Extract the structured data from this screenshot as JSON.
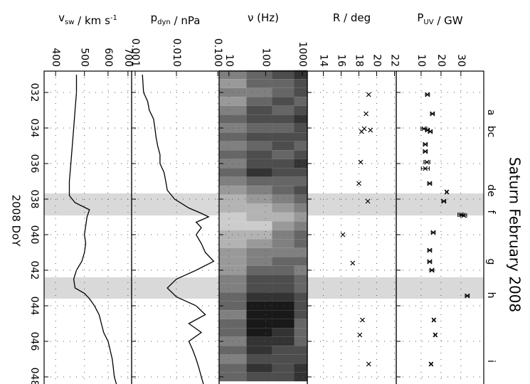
{
  "figure": {
    "title": "Saturn February 2008",
    "xlabel": "2008 DoY",
    "xlim": [
      30.8,
      48.4
    ],
    "xticks": [
      {
        "value": 32,
        "label": "032"
      },
      {
        "value": 34,
        "label": "034"
      },
      {
        "value": 36,
        "label": "036"
      },
      {
        "value": 38,
        "label": "038"
      },
      {
        "value": 40,
        "label": "040"
      },
      {
        "value": 42,
        "label": "042"
      },
      {
        "value": 44,
        "label": "044"
      },
      {
        "value": 46,
        "label": "046"
      },
      {
        "value": 48,
        "label": "048"
      }
    ],
    "grid": true,
    "shade_color": "#d9d9d9",
    "shaded": [
      [
        37.68,
        38.92
      ],
      [
        42.4,
        43.6
      ]
    ],
    "events": [
      {
        "x": 33.12,
        "label": "a"
      },
      {
        "x": 34.2,
        "label": "bc"
      },
      {
        "x": 37.52,
        "label": "de"
      },
      {
        "x": 38.72,
        "label": "f"
      },
      {
        "x": 41.52,
        "label": "g"
      },
      {
        "x": 43.4,
        "label": "h"
      },
      {
        "x": 47.12,
        "label": "i"
      }
    ]
  },
  "chart_data": [
    {
      "type": "line",
      "ylabel": [
        "v",
        {
          "sub": "sw"
        },
        " / km s",
        {
          "sup": "-1"
        }
      ],
      "log": true,
      "color": "#000000",
      "ylim": [
        366,
        720
      ],
      "yticks": [
        400,
        500,
        600,
        700
      ],
      "x": [
        31.0,
        32.0,
        33.0,
        34.0,
        35.0,
        36.0,
        37.0,
        37.8,
        38.2,
        38.6,
        39.0,
        39.5,
        40.0,
        40.5,
        41.0,
        41.5,
        42.0,
        42.5,
        43.0,
        43.3,
        43.6,
        44.0,
        44.5,
        45.0,
        45.5,
        46.0,
        46.5,
        47.0,
        47.5,
        48.0,
        48.4
      ],
      "values": [
        470,
        470,
        465,
        460,
        455,
        450,
        445,
        445,
        465,
        520,
        510,
        505,
        500,
        505,
        500,
        490,
        470,
        460,
        465,
        500,
        520,
        540,
        560,
        570,
        580,
        600,
        610,
        620,
        625,
        630,
        640
      ]
    },
    {
      "type": "line",
      "ylabel": [
        "p",
        {
          "sub": "dyn"
        },
        " / nPa"
      ],
      "log": true,
      "color": "#000000",
      "ylim": [
        0.00082,
        0.108
      ],
      "yticks": [
        {
          "value": 0.001,
          "label": "0.001"
        },
        {
          "value": 0.01,
          "label": "0.010"
        },
        {
          "value": 0.1,
          "label": "0.100"
        }
      ],
      "x": [
        31.0,
        32.0,
        32.5,
        33.0,
        33.5,
        34.0,
        34.5,
        35.0,
        35.5,
        36.0,
        36.5,
        37.0,
        37.5,
        38.0,
        38.5,
        38.8,
        39.0,
        39.3,
        39.6,
        40.0,
        40.5,
        41.0,
        41.5,
        42.0,
        42.5,
        43.0,
        43.5,
        44.0,
        44.5,
        45.0,
        45.5,
        46.0,
        46.5,
        47.0,
        47.5,
        48.0,
        48.4
      ],
      "values": [
        0.0015,
        0.0016,
        0.002,
        0.0022,
        0.0028,
        0.003,
        0.0032,
        0.0035,
        0.004,
        0.004,
        0.005,
        0.0055,
        0.006,
        0.009,
        0.02,
        0.04,
        0.06,
        0.03,
        0.04,
        0.03,
        0.04,
        0.05,
        0.08,
        0.03,
        0.01,
        0.006,
        0.01,
        0.03,
        0.05,
        0.02,
        0.04,
        0.02,
        0.025,
        0.03,
        0.035,
        0.04,
        0.045
      ]
    },
    {
      "type": "heatmap",
      "ylabel": [
        "ν (Hz)"
      ],
      "log": true,
      "ylim": [
        5.4,
        1370
      ],
      "yticks": [
        10,
        100,
        1000
      ],
      "bins": [
        5.4,
        30,
        150,
        600,
        1370
      ],
      "x": [
        31.0,
        31.5,
        32.0,
        32.5,
        33.0,
        33.5,
        34.0,
        34.5,
        35.0,
        35.5,
        36.0,
        36.5,
        37.0,
        37.5,
        38.0,
        38.5,
        39.0,
        39.5,
        40.0,
        40.5,
        41.0,
        41.5,
        42.0,
        42.5,
        43.0,
        43.5,
        44.0,
        44.5,
        45.0,
        45.5,
        46.0,
        46.5,
        47.0,
        47.5,
        48.0
      ],
      "z": [
        [
          0.5,
          0.6,
          0.7,
          0.8
        ],
        [
          0.4,
          0.6,
          0.6,
          0.7
        ],
        [
          0.5,
          0.5,
          0.6,
          0.7
        ],
        [
          0.4,
          0.6,
          0.7,
          0.6
        ],
        [
          0.5,
          0.7,
          0.6,
          0.7
        ],
        [
          0.6,
          0.7,
          0.7,
          0.8
        ],
        [
          0.5,
          0.6,
          0.6,
          0.7
        ],
        [
          0.6,
          0.7,
          0.7,
          0.7
        ],
        [
          0.5,
          0.6,
          0.7,
          0.6
        ],
        [
          0.6,
          0.7,
          0.6,
          0.7
        ],
        [
          0.5,
          0.7,
          0.7,
          0.8
        ],
        [
          0.6,
          0.8,
          0.7,
          0.7
        ],
        [
          0.5,
          0.6,
          0.6,
          0.6
        ],
        [
          0.4,
          0.5,
          0.6,
          0.7
        ],
        [
          0.3,
          0.4,
          0.5,
          0.6
        ],
        [
          0.3,
          0.3,
          0.4,
          0.5
        ],
        [
          0.2,
          0.3,
          0.3,
          0.4
        ],
        [
          0.2,
          0.2,
          0.4,
          0.5
        ],
        [
          0.3,
          0.3,
          0.5,
          0.6
        ],
        [
          0.3,
          0.4,
          0.5,
          0.6
        ],
        [
          0.4,
          0.5,
          0.5,
          0.5
        ],
        [
          0.4,
          0.5,
          0.6,
          0.6
        ],
        [
          0.4,
          0.6,
          0.6,
          0.5
        ],
        [
          0.5,
          0.7,
          0.7,
          0.6
        ],
        [
          0.5,
          0.7,
          0.7,
          0.6
        ],
        [
          0.6,
          0.8,
          0.8,
          0.7
        ],
        [
          0.6,
          0.9,
          0.9,
          0.7
        ],
        [
          0.5,
          0.9,
          0.9,
          0.7
        ],
        [
          0.6,
          0.9,
          0.9,
          0.6
        ],
        [
          0.6,
          0.9,
          0.8,
          0.6
        ],
        [
          0.5,
          0.8,
          0.8,
          0.6
        ],
        [
          0.6,
          0.8,
          0.7,
          0.7
        ],
        [
          0.5,
          0.7,
          0.7,
          0.7
        ],
        [
          0.6,
          0.8,
          0.7,
          0.8
        ],
        [
          0.6,
          0.7,
          0.7,
          0.8
        ]
      ]
    },
    {
      "type": "scatter",
      "ylabel": [
        "R / deg"
      ],
      "log": false,
      "color": "#000000",
      "ylim": [
        12.2,
        22.2
      ],
      "yticks": [
        14,
        16,
        18,
        20,
        22
      ],
      "x": [
        32.12,
        33.2,
        34.04,
        34.12,
        34.2,
        35.92,
        37.12,
        38.12,
        40.0,
        41.6,
        44.8,
        45.64,
        47.28
      ],
      "values": [
        19.1,
        18.8,
        18.6,
        19.3,
        18.3,
        18.2,
        18.0,
        19.0,
        16.2,
        17.3,
        18.4,
        18.1,
        19.1
      ]
    },
    {
      "type": "scatter",
      "ylabel": [
        "P",
        {
          "sub": "UV"
        },
        " / GW"
      ],
      "log": false,
      "color": "#000000",
      "ylim": [
        -2.5,
        41.5
      ],
      "yticks": [
        10,
        20,
        30
      ],
      "x": [
        32.12,
        33.2,
        34.04,
        34.12,
        34.2,
        34.92,
        35.32,
        35.92,
        36.28,
        37.12,
        37.6,
        38.12,
        38.88,
        38.92,
        39.88,
        40.88,
        41.52,
        42.0,
        43.44,
        44.8,
        45.64,
        47.28
      ],
      "values": [
        13.2,
        15.7,
        11.4,
        13.2,
        14.6,
        12.1,
        12.1,
        12.9,
        12.1,
        14.3,
        22.9,
        21.4,
        30.0,
        31.4,
        16.1,
        14.3,
        14.3,
        15.4,
        33.2,
        16.4,
        17.1,
        15.0
      ],
      "errors": [
        1,
        1,
        1.5,
        1,
        1,
        1,
        1,
        1.5,
        2,
        1,
        0.5,
        1,
        1.5,
        1.5,
        1,
        1,
        1,
        1,
        1,
        0.5,
        0.5,
        0.5
      ]
    }
  ]
}
